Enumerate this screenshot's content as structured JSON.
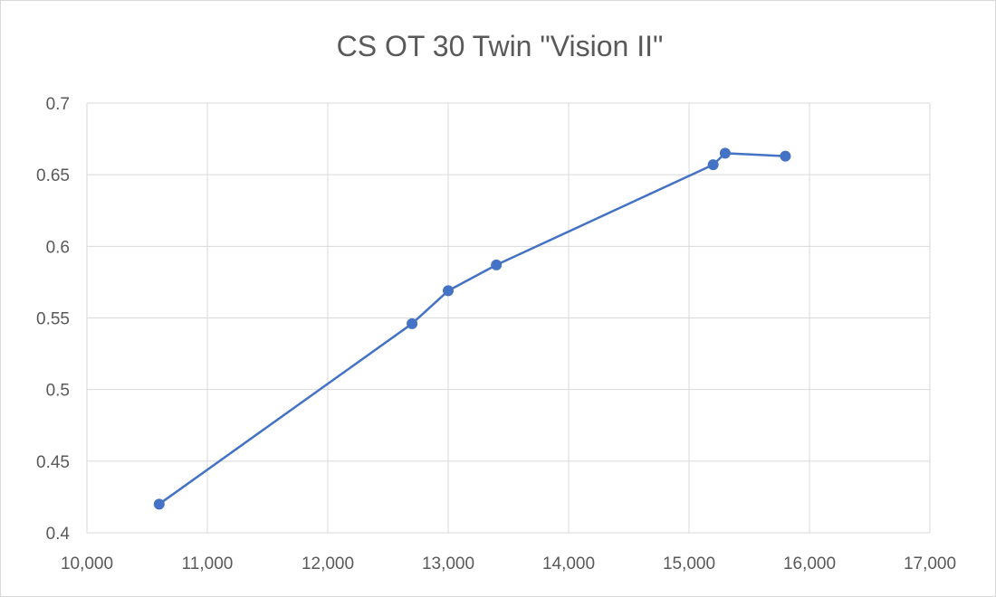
{
  "chart_data": {
    "type": "scatter",
    "title": "CS OT 30 Twin \"Vision II\"",
    "xlabel": "",
    "ylabel": "",
    "xlim": [
      10000,
      17000
    ],
    "ylim": [
      0.4,
      0.7
    ],
    "x_ticks": [
      "10,000",
      "11,000",
      "12,000",
      "13,000",
      "14,000",
      "15,000",
      "16,000",
      "17,000"
    ],
    "y_ticks": [
      "0.4",
      "0.45",
      "0.5",
      "0.55",
      "0.6",
      "0.65",
      "0.7"
    ],
    "grid": true,
    "legend": "none",
    "series": [
      {
        "color": "#4472c4",
        "points": [
          {
            "x": 10600,
            "y": 0.42
          },
          {
            "x": 12700,
            "y": 0.546
          },
          {
            "x": 13000,
            "y": 0.569
          },
          {
            "x": 13400,
            "y": 0.587
          },
          {
            "x": 15200,
            "y": 0.657
          },
          {
            "x": 15300,
            "y": 0.665
          },
          {
            "x": 15800,
            "y": 0.663
          }
        ]
      }
    ]
  }
}
